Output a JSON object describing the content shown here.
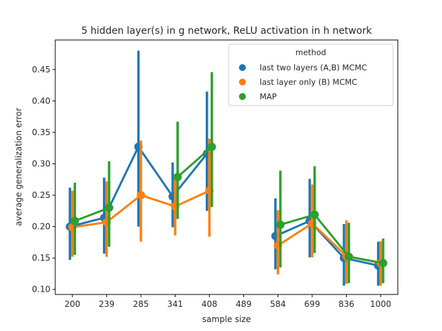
{
  "chart_data": {
    "type": "line",
    "title": "5 hidden layer(s) in g network, ReLU activation in h network",
    "xlabel": "sample size",
    "ylabel": "average generalization error",
    "categories": [
      "200",
      "239",
      "285",
      "341",
      "408",
      "489",
      "584",
      "699",
      "836",
      "1000"
    ],
    "ylim": [
      0.092,
      0.497
    ],
    "yticks": [
      0.1,
      0.15,
      0.2,
      0.25,
      0.3,
      0.35,
      0.4,
      0.45
    ],
    "ytick_labels": [
      "0.10",
      "0.15",
      "0.20",
      "0.25",
      "0.30",
      "0.35",
      "0.40",
      "0.45"
    ],
    "grid": false,
    "legend": {
      "title": "method",
      "placement": "top-right"
    },
    "series": [
      {
        "name": "last two layers (A,B) MCMC",
        "color": "#1f77b4",
        "values": [
          0.2,
          0.214,
          0.327,
          0.248,
          0.316,
          null,
          0.185,
          0.209,
          0.15,
          0.138
        ],
        "ci_low": [
          0.147,
          0.157,
          0.2,
          0.199,
          0.225,
          null,
          0.132,
          0.151,
          0.106,
          0.106
        ],
        "ci_high": [
          0.262,
          0.278,
          0.48,
          0.302,
          0.415,
          null,
          0.245,
          0.276,
          0.204,
          0.176
        ]
      },
      {
        "name": "last layer only (B) MCMC",
        "color": "#ff7f0e",
        "values": [
          0.199,
          0.207,
          0.25,
          0.232,
          0.257,
          null,
          0.17,
          0.205,
          0.153,
          0.142
        ],
        "ci_low": [
          0.152,
          0.152,
          0.176,
          0.186,
          0.184,
          null,
          0.124,
          0.151,
          0.109,
          0.106
        ],
        "ci_high": [
          0.257,
          0.272,
          0.337,
          0.278,
          0.34,
          null,
          0.226,
          0.267,
          0.21,
          0.177
        ]
      },
      {
        "name": "MAP",
        "color": "#2ca02c",
        "values": [
          0.209,
          0.23,
          null,
          0.279,
          0.327,
          null,
          0.203,
          0.219,
          0.152,
          0.142
        ],
        "ci_low": [
          0.155,
          0.168,
          null,
          0.212,
          0.231,
          null,
          0.135,
          0.158,
          0.11,
          0.11
        ],
        "ci_high": [
          0.27,
          0.304,
          null,
          0.367,
          0.446,
          null,
          0.289,
          0.296,
          0.206,
          0.181
        ]
      }
    ]
  }
}
